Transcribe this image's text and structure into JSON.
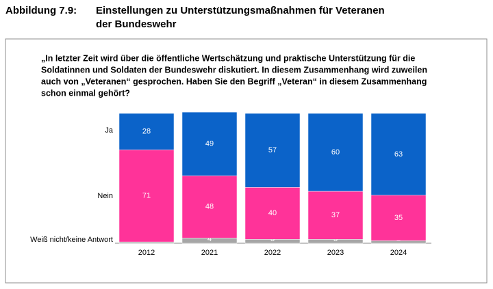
{
  "header": {
    "label": "Abbildung 7.9:",
    "title_lines": [
      "Einstellungen zu Unterstützungsmaßnahmen für Veteranen",
      "der Bundeswehr"
    ]
  },
  "chart_data": {
    "type": "stacked_bar",
    "question_lines": [
      "„In letzter Zeit wird über die öffentliche Wertschätzung und praktische Unterstützung für die",
      "Soldatinnen und Soldaten der Bundeswehr diskutiert. In diesem Zusammenhang wird zuweilen",
      "auch von „Veteranen“ gesprochen. Haben Sie den Begriff „Veteran“ in diesem Zusammenhang",
      "schon einmal gehört?"
    ],
    "categories": [
      "2012",
      "2021",
      "2022",
      "2023",
      "2024"
    ],
    "series": [
      {
        "name": "Weiß nicht/keine Antwort",
        "color": "#a6a6a6",
        "values": [
          1,
          4,
          3,
          3,
          2
        ]
      },
      {
        "name": "Nein",
        "color": "#ff3399",
        "values": [
          71,
          48,
          40,
          37,
          35
        ]
      },
      {
        "name": "Ja",
        "color": "#0b63c9",
        "values": [
          28,
          49,
          57,
          60,
          63
        ]
      }
    ]
  }
}
